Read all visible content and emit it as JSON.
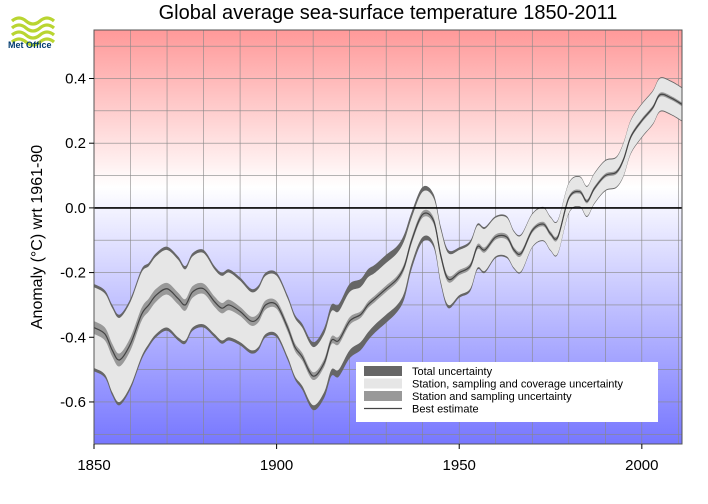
{
  "logo": {
    "text": "Met Office"
  },
  "chart_data": {
    "type": "area",
    "title": "Global average sea-surface temperature 1850-2011",
    "xlabel": "",
    "ylabel": "Anomaly (°C) wrt 1961-90",
    "xlim": [
      1850,
      2011
    ],
    "ylim": [
      -0.73,
      0.55
    ],
    "x_ticks": [
      1850,
      1900,
      1950,
      2000
    ],
    "y_ticks": [
      -0.6,
      -0.4,
      -0.2,
      0.0,
      0.2,
      0.4
    ],
    "y_tick_labels": [
      "-0.6",
      "-0.4",
      "-0.2",
      "0.0",
      "0.2",
      "0.4"
    ],
    "grid": true,
    "background": {
      "warm": "#ff9999",
      "cool": "#7777ff"
    },
    "colors": {
      "total": "#666666",
      "coverage": "#e6e6e6",
      "station": "#999999",
      "best": "#444444"
    },
    "legend": {
      "placement": "bottom-right",
      "entries": [
        {
          "key": "total",
          "label": "Total uncertainty"
        },
        {
          "key": "coverage",
          "label": "Station, sampling and coverage uncertainty"
        },
        {
          "key": "station",
          "label": "Station and sampling uncertainty"
        },
        {
          "key": "best",
          "label": "Best estimate"
        }
      ]
    },
    "series": [
      {
        "name": "Best estimate",
        "x": [
          1850,
          1853,
          1855,
          1857,
          1860,
          1863,
          1865,
          1867,
          1870,
          1873,
          1875,
          1877,
          1880,
          1883,
          1885,
          1887,
          1890,
          1893,
          1895,
          1897,
          1900,
          1903,
          1905,
          1907,
          1910,
          1913,
          1915,
          1917,
          1920,
          1923,
          1925,
          1927,
          1930,
          1933,
          1935,
          1937,
          1940,
          1943,
          1945,
          1947,
          1950,
          1953,
          1955,
          1957,
          1960,
          1963,
          1965,
          1967,
          1970,
          1973,
          1975,
          1977,
          1980,
          1983,
          1985,
          1987,
          1990,
          1993,
          1995,
          1997,
          2000,
          2003,
          2005,
          2008,
          2011
        ],
        "best": [
          -0.37,
          -0.39,
          -0.44,
          -0.47,
          -0.42,
          -0.33,
          -0.3,
          -0.27,
          -0.25,
          -0.28,
          -0.3,
          -0.26,
          -0.25,
          -0.29,
          -0.31,
          -0.3,
          -0.32,
          -0.35,
          -0.34,
          -0.3,
          -0.3,
          -0.37,
          -0.43,
          -0.46,
          -0.52,
          -0.48,
          -0.41,
          -0.41,
          -0.35,
          -0.33,
          -0.3,
          -0.28,
          -0.25,
          -0.22,
          -0.18,
          -0.1,
          -0.02,
          -0.04,
          -0.15,
          -0.22,
          -0.2,
          -0.18,
          -0.12,
          -0.13,
          -0.09,
          -0.09,
          -0.13,
          -0.14,
          -0.07,
          -0.05,
          -0.08,
          -0.09,
          0.03,
          0.05,
          0.02,
          0.06,
          0.1,
          0.11,
          0.15,
          0.22,
          0.27,
          0.31,
          0.35,
          0.34,
          0.32
        ],
        "coverage_half_width": [
          0.125,
          0.125,
          0.13,
          0.13,
          0.13,
          0.13,
          0.12,
          0.12,
          0.12,
          0.12,
          0.11,
          0.11,
          0.11,
          0.1,
          0.1,
          0.1,
          0.095,
          0.09,
          0.09,
          0.09,
          0.09,
          0.09,
          0.09,
          0.09,
          0.09,
          0.09,
          0.09,
          0.09,
          0.09,
          0.085,
          0.085,
          0.08,
          0.08,
          0.08,
          0.08,
          0.07,
          0.07,
          0.07,
          0.08,
          0.08,
          0.07,
          0.07,
          0.065,
          0.065,
          0.06,
          0.06,
          0.055,
          0.055,
          0.05,
          0.05,
          0.05,
          0.05,
          0.045,
          0.045,
          0.045,
          0.045,
          0.045,
          0.045,
          0.05,
          0.05,
          0.05,
          0.05,
          0.05,
          0.05,
          0.05
        ],
        "total_extra": [
          0.01,
          0.01,
          0.01,
          0.01,
          0.01,
          0.01,
          0.01,
          0.01,
          0.01,
          0.01,
          0.01,
          0.01,
          0.01,
          0.01,
          0.01,
          0.01,
          0.01,
          0.01,
          0.01,
          0.01,
          0.01,
          0.01,
          0.01,
          0.012,
          0.015,
          0.018,
          0.02,
          0.022,
          0.025,
          0.025,
          0.025,
          0.025,
          0.025,
          0.022,
          0.02,
          0.018,
          0.015,
          0.012,
          0.01,
          0.01,
          0.008,
          0.008,
          0.006,
          0.006,
          0.005,
          0.005,
          0.004,
          0.004,
          0.003,
          0.003,
          0.003,
          0.003,
          0.003,
          0.003,
          0.003,
          0.003,
          0.003,
          0.003,
          0.003,
          0.003,
          0.003,
          0.003,
          0.003,
          0.003,
          0.003
        ],
        "station_half_width": [
          0.02,
          0.02,
          0.02,
          0.02,
          0.02,
          0.02,
          0.02,
          0.02,
          0.018,
          0.018,
          0.018,
          0.018,
          0.016,
          0.016,
          0.016,
          0.016,
          0.014,
          0.014,
          0.014,
          0.014,
          0.012,
          0.012,
          0.012,
          0.012,
          0.012,
          0.012,
          0.012,
          0.012,
          0.012,
          0.01,
          0.01,
          0.01,
          0.01,
          0.01,
          0.01,
          0.01,
          0.01,
          0.01,
          0.01,
          0.01,
          0.008,
          0.008,
          0.008,
          0.008,
          0.008,
          0.008,
          0.008,
          0.008,
          0.007,
          0.007,
          0.007,
          0.007,
          0.006,
          0.006,
          0.006,
          0.006,
          0.006,
          0.006,
          0.006,
          0.006,
          0.006,
          0.006,
          0.006,
          0.006,
          0.006
        ]
      }
    ]
  }
}
